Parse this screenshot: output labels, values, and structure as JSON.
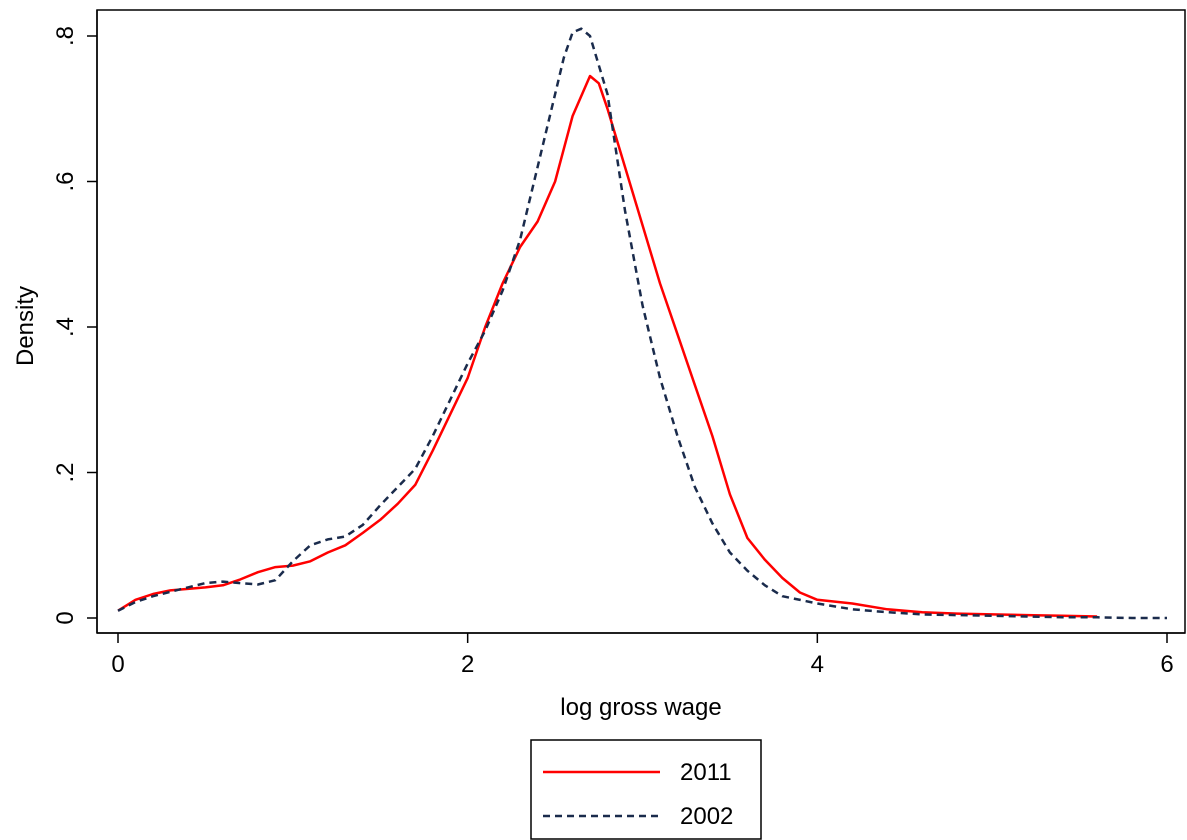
{
  "chart_data": {
    "type": "line",
    "title": "",
    "xlabel": "log gross wage",
    "ylabel": "Density",
    "xlim": [
      0,
      6
    ],
    "ylim": [
      0,
      0.8
    ],
    "x_ticks": [
      0,
      2,
      4,
      6
    ],
    "x_tick_labels": [
      "0",
      "2",
      "4",
      "6"
    ],
    "y_ticks": [
      0,
      0.2,
      0.4,
      0.6,
      0.8
    ],
    "y_tick_labels": [
      "0",
      ".2",
      ".4",
      ".6",
      ".8"
    ],
    "grid": false,
    "legend_position": "bottom",
    "series": [
      {
        "name": "2011",
        "color": "#ff0000",
        "dash": "solid",
        "x": [
          0,
          0.1,
          0.2,
          0.3,
          0.4,
          0.5,
          0.6,
          0.7,
          0.8,
          0.9,
          1.0,
          1.1,
          1.2,
          1.3,
          1.4,
          1.5,
          1.6,
          1.7,
          1.8,
          1.9,
          2.0,
          2.1,
          2.2,
          2.3,
          2.4,
          2.5,
          2.6,
          2.7,
          2.75,
          2.8,
          2.9,
          3.0,
          3.1,
          3.2,
          3.3,
          3.4,
          3.5,
          3.6,
          3.7,
          3.8,
          3.9,
          4.0,
          4.2,
          4.4,
          4.6,
          4.8,
          5.0,
          5.2,
          5.4,
          5.6
        ],
        "y": [
          0.01,
          0.025,
          0.033,
          0.038,
          0.04,
          0.042,
          0.045,
          0.053,
          0.063,
          0.07,
          0.072,
          0.078,
          0.09,
          0.1,
          0.117,
          0.135,
          0.157,
          0.183,
          0.23,
          0.28,
          0.33,
          0.4,
          0.46,
          0.51,
          0.545,
          0.6,
          0.69,
          0.745,
          0.735,
          0.7,
          0.62,
          0.54,
          0.46,
          0.39,
          0.32,
          0.25,
          0.17,
          0.11,
          0.08,
          0.055,
          0.035,
          0.025,
          0.02,
          0.012,
          0.008,
          0.006,
          0.005,
          0.004,
          0.003,
          0.002
        ]
      },
      {
        "name": "2002",
        "color": "#1a2b4c",
        "dash": "dashed",
        "x": [
          0,
          0.1,
          0.2,
          0.3,
          0.4,
          0.5,
          0.6,
          0.7,
          0.8,
          0.9,
          1.0,
          1.1,
          1.2,
          1.3,
          1.4,
          1.5,
          1.6,
          1.7,
          1.8,
          1.9,
          2.0,
          2.1,
          2.2,
          2.3,
          2.4,
          2.5,
          2.55,
          2.6,
          2.65,
          2.7,
          2.8,
          2.9,
          3.0,
          3.1,
          3.2,
          3.3,
          3.4,
          3.5,
          3.6,
          3.7,
          3.8,
          4.0,
          4.2,
          4.4,
          4.6,
          4.8,
          5.0,
          5.2,
          5.4,
          5.6,
          5.8,
          6.0
        ],
        "y": [
          0.01,
          0.022,
          0.03,
          0.036,
          0.042,
          0.048,
          0.05,
          0.048,
          0.046,
          0.052,
          0.078,
          0.1,
          0.108,
          0.112,
          0.128,
          0.155,
          0.18,
          0.205,
          0.25,
          0.3,
          0.35,
          0.395,
          0.45,
          0.52,
          0.62,
          0.72,
          0.77,
          0.805,
          0.81,
          0.8,
          0.72,
          0.56,
          0.43,
          0.33,
          0.25,
          0.18,
          0.13,
          0.09,
          0.065,
          0.045,
          0.03,
          0.02,
          0.012,
          0.008,
          0.005,
          0.004,
          0.003,
          0.002,
          0.001,
          0.001,
          0.0,
          0.0
        ]
      }
    ]
  }
}
